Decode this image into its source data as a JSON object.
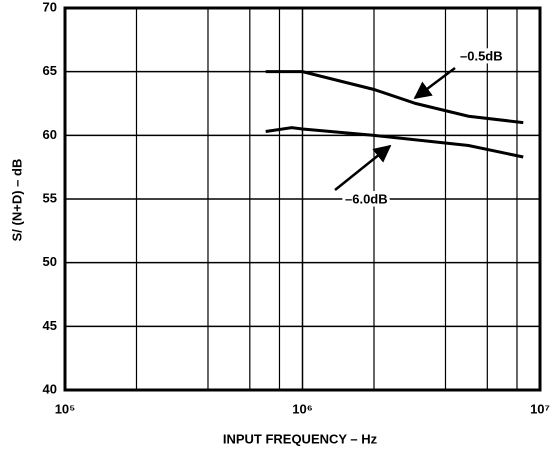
{
  "chart_data": {
    "type": "line",
    "xlabel": "INPUT FREQUENCY – Hz",
    "ylabel": "S/ (N+D) – dB",
    "xscale": "log",
    "xlim": [
      100000,
      10000000
    ],
    "ylim": [
      40,
      70
    ],
    "xticks": [
      {
        "value": 100000,
        "label": "10⁵"
      },
      {
        "value": 1000000,
        "label": "10⁶"
      },
      {
        "value": 10000000,
        "label": "10⁷"
      }
    ],
    "xminor": [
      200000,
      400000,
      600000,
      800000,
      2000000,
      4000000,
      6000000,
      8000000
    ],
    "yticks": [
      40,
      45,
      50,
      55,
      60,
      65,
      70
    ],
    "grid": true,
    "series": [
      {
        "name": "–0.5dB",
        "color": "#000000",
        "x": [
          700000,
          1000000,
          2000000,
          3000000,
          5000000,
          8500000
        ],
        "values": [
          65,
          65,
          63.6,
          62.5,
          61.5,
          61
        ]
      },
      {
        "name": "–6.0dB",
        "color": "#000000",
        "x": [
          700000,
          900000,
          1000000,
          2000000,
          5000000,
          8500000
        ],
        "values": [
          60.3,
          60.6,
          60.5,
          60,
          59.2,
          58.3
        ]
      }
    ]
  }
}
